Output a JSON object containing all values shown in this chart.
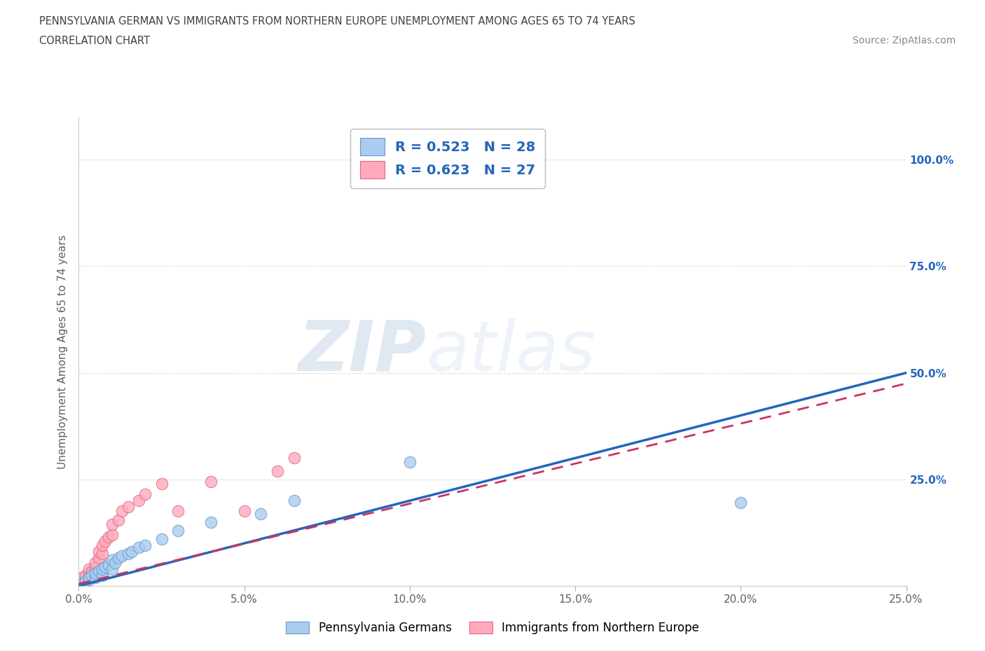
{
  "title_line1": "PENNSYLVANIA GERMAN VS IMMIGRANTS FROM NORTHERN EUROPE UNEMPLOYMENT AMONG AGES 65 TO 74 YEARS",
  "title_line2": "CORRELATION CHART",
  "source": "Source: ZipAtlas.com",
  "ylabel": "Unemployment Among Ages 65 to 74 years",
  "xlim": [
    0.0,
    0.25
  ],
  "ylim": [
    0.0,
    1.1
  ],
  "xticks": [
    0.0,
    0.05,
    0.1,
    0.15,
    0.2,
    0.25
  ],
  "xtick_labels": [
    "0.0%",
    "5.0%",
    "10.0%",
    "15.0%",
    "20.0%",
    "25.0%"
  ],
  "yticks": [
    0.0,
    0.25,
    0.5,
    0.75,
    1.0
  ],
  "ytick_labels_right": [
    "",
    "25.0%",
    "50.0%",
    "75.0%",
    "100.0%"
  ],
  "blue_scatter_x": [
    0.001,
    0.002,
    0.003,
    0.003,
    0.004,
    0.005,
    0.005,
    0.006,
    0.007,
    0.007,
    0.008,
    0.009,
    0.01,
    0.01,
    0.011,
    0.012,
    0.013,
    0.015,
    0.016,
    0.018,
    0.02,
    0.025,
    0.03,
    0.04,
    0.055,
    0.065,
    0.1,
    0.2
  ],
  "blue_scatter_y": [
    0.005,
    0.01,
    0.015,
    0.02,
    0.025,
    0.02,
    0.03,
    0.035,
    0.025,
    0.04,
    0.045,
    0.05,
    0.04,
    0.06,
    0.055,
    0.065,
    0.07,
    0.075,
    0.08,
    0.09,
    0.095,
    0.11,
    0.13,
    0.15,
    0.17,
    0.2,
    0.29,
    0.195
  ],
  "pink_scatter_x": [
    0.001,
    0.001,
    0.002,
    0.003,
    0.003,
    0.004,
    0.005,
    0.005,
    0.006,
    0.006,
    0.007,
    0.007,
    0.008,
    0.009,
    0.01,
    0.01,
    0.012,
    0.013,
    0.015,
    0.018,
    0.02,
    0.025,
    0.03,
    0.04,
    0.05,
    0.06,
    0.065
  ],
  "pink_scatter_y": [
    0.01,
    0.02,
    0.025,
    0.03,
    0.04,
    0.035,
    0.045,
    0.055,
    0.065,
    0.08,
    0.075,
    0.095,
    0.105,
    0.115,
    0.12,
    0.145,
    0.155,
    0.175,
    0.185,
    0.2,
    0.215,
    0.24,
    0.175,
    0.245,
    0.175,
    0.27,
    0.3
  ],
  "blue_R": 0.523,
  "blue_N": 28,
  "pink_R": 0.623,
  "pink_N": 27,
  "blue_color": "#aaccee",
  "blue_edge_color": "#6699cc",
  "blue_line_color": "#2266bb",
  "pink_color": "#ffaabb",
  "pink_edge_color": "#dd6688",
  "pink_line_color": "#cc3366",
  "watermark_zip": "ZIP",
  "watermark_atlas": "atlas",
  "watermark_color": "#ccddf0",
  "grid_color": "#cccccc",
  "background_color": "#ffffff",
  "title_color": "#404040",
  "axis_label_color": "#606060",
  "tick_color_right": "#2266bb",
  "tick_label_color": "#606060",
  "legend_text_color": "#2266bb"
}
